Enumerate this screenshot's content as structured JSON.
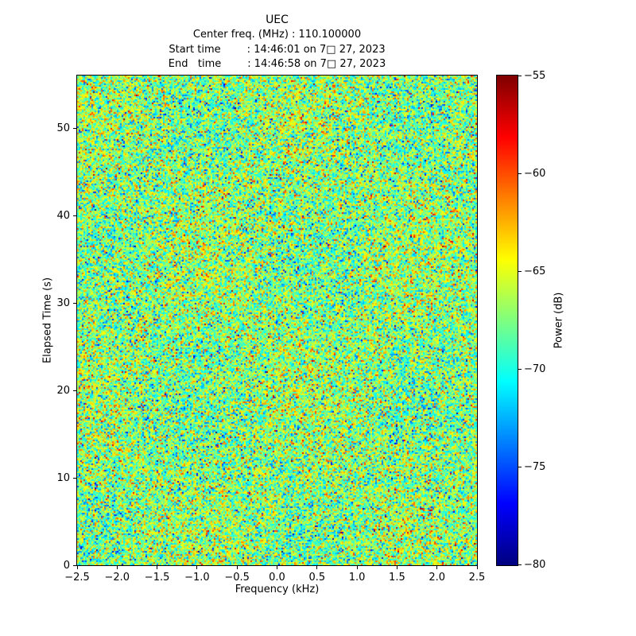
{
  "chart_data": {
    "type": "heatmap",
    "title": "UEC",
    "annotations": [
      "Center freq. (MHz) : 110.100000",
      "Start time        : 14:46:01 on 7□ 27, 2023",
      "End   time        : 14:46:58 on 7□ 27, 2023"
    ],
    "xlabel": "Frequency (kHz)",
    "ylabel": "Elapsed Time (s)",
    "colorbar_label": "Power (dB)",
    "colormap": "jet",
    "xlim": [
      -2.5,
      2.5
    ],
    "ylim": [
      0,
      56
    ],
    "clim": [
      -80,
      -55
    ],
    "x_tick_values": [
      -2.5,
      -2.0,
      -1.5,
      -1.0,
      -0.5,
      0.0,
      0.5,
      1.0,
      1.5,
      2.0,
      2.5
    ],
    "x_tick_labels": [
      "−2.5",
      "−2.0",
      "−1.5",
      "−1.0",
      "−0.5",
      "0.0",
      "0.5",
      "1.0",
      "1.5",
      "2.0",
      "2.5"
    ],
    "y_tick_values": [
      0,
      10,
      20,
      30,
      40,
      50
    ],
    "y_tick_labels": [
      "0",
      "10",
      "20",
      "30",
      "40",
      "50"
    ],
    "colorbar_tick_values": [
      -55,
      -60,
      -65,
      -70,
      -75,
      -80
    ],
    "colorbar_tick_labels": [
      "−55",
      "−60",
      "−65",
      "−70",
      "−75",
      "−80"
    ],
    "data_description": "broadband random noise waterfall; no coherent signal visible; speckled green/teal field with sparse yellow, orange, blue and rare dark-red/navy pixels",
    "noise_model": {
      "mean_db": -67.3,
      "std_db": 3.4,
      "seed": 20230727
    }
  }
}
